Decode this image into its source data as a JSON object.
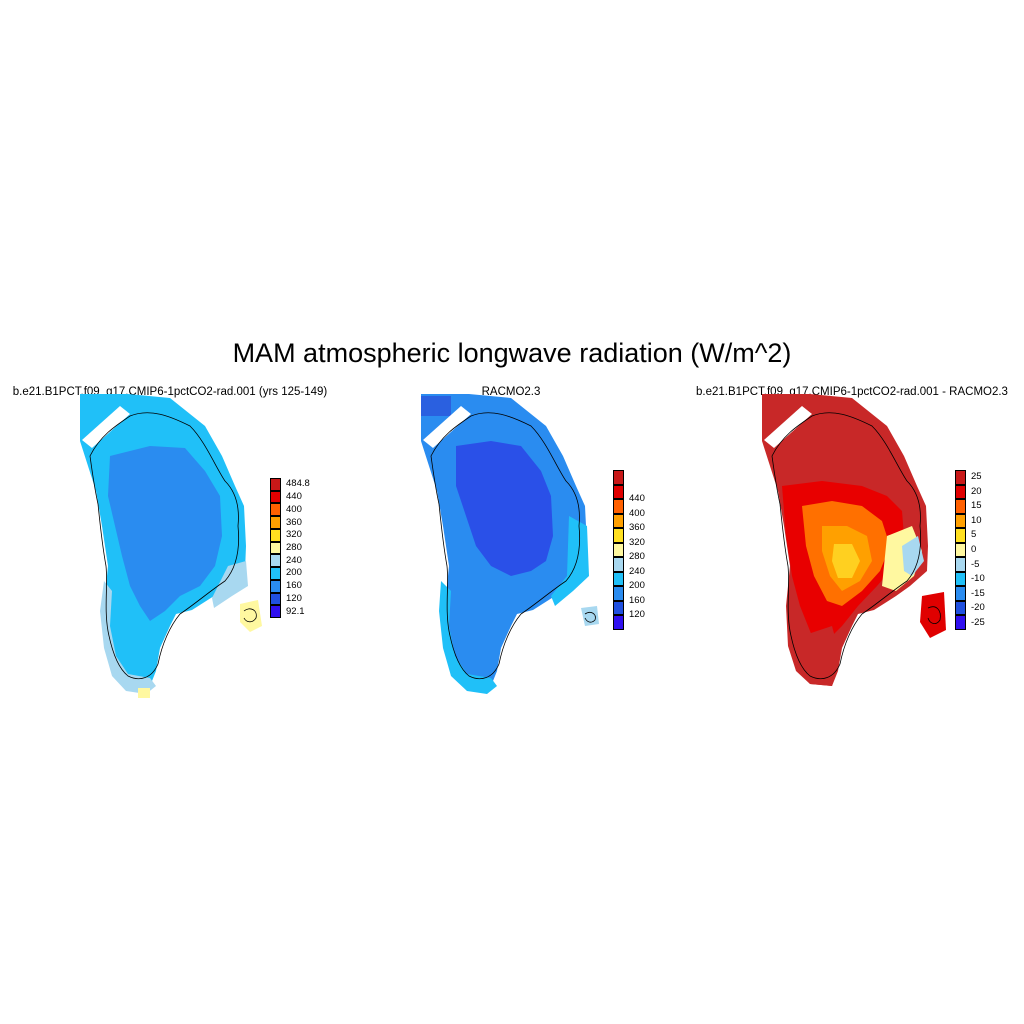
{
  "title": "MAM atmospheric longwave radiation (W/m^2)",
  "panels": [
    {
      "title": "b.e21.B1PCT.f09_g17.CMIP6-1pctCO2-rad.001 (yrs 125-149)",
      "colorbar": {
        "colors": [
          "#3010f0",
          "#2050e0",
          "#2a8cf0",
          "#20c0f8",
          "#a8d8f0",
          "#fff8a0",
          "#ffe020",
          "#ffa000",
          "#ff6000",
          "#e00000",
          "#c81818"
        ],
        "labels": [
          "92.1",
          "120",
          "160",
          "200",
          "240",
          "280",
          "320",
          "360",
          "400",
          "440",
          "484.8"
        ]
      }
    },
    {
      "title": "RACMO2.3",
      "colorbar": {
        "colors": [
          "#3010f0",
          "#2050e0",
          "#2a8cf0",
          "#20c0f8",
          "#a8d8f0",
          "#fff8a0",
          "#ffe020",
          "#ffa000",
          "#ff6000",
          "#e00000",
          "#c81818"
        ],
        "labels": [
          "120",
          "160",
          "200",
          "240",
          "280",
          "320",
          "360",
          "400",
          "440"
        ]
      }
    },
    {
      "title": "b.e21.B1PCT.f09_g17.CMIP6-1pctCO2-rad.001 - RACMO2.3",
      "colorbar": {
        "colors": [
          "#3010f0",
          "#2050e0",
          "#2a8cf0",
          "#20c0f8",
          "#a8d8f0",
          "#fff8a0",
          "#ffe020",
          "#ffa000",
          "#ff6000",
          "#e00000",
          "#c81818"
        ],
        "labels": [
          "-25",
          "-20",
          "-15",
          "-10",
          "-5",
          "0",
          "5",
          "10",
          "15",
          "20",
          "25"
        ]
      }
    }
  ]
}
